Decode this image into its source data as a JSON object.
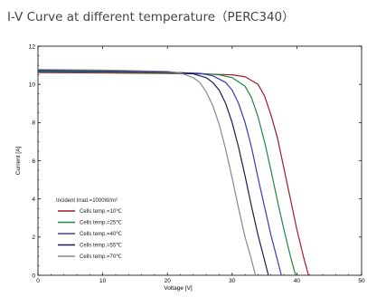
{
  "heading": "I-V Curve at different temperature（PERC340）",
  "colors": {
    "axis": "#000000",
    "grid": "#000000"
  },
  "chart_data": {
    "type": "line",
    "title": "",
    "xlabel": "Voltage [V]",
    "ylabel": "Current [A]",
    "xlim": [
      0,
      50
    ],
    "ylim": [
      0,
      12
    ],
    "x_ticks": [
      "0",
      "10",
      "20",
      "30",
      "40",
      "50"
    ],
    "y_ticks": [
      "0",
      "2",
      "4",
      "6",
      "8",
      "10",
      "12"
    ],
    "grid": false,
    "legend_position": "lower-left",
    "legend_title": "Incident Irrad.=1000W/m²",
    "series": [
      {
        "name": "Cells temp.=10℃",
        "color": "#a01c2a",
        "points": [
          [
            0,
            10.62
          ],
          [
            10,
            10.6
          ],
          [
            20,
            10.57
          ],
          [
            25,
            10.55
          ],
          [
            30,
            10.5
          ],
          [
            32,
            10.4
          ],
          [
            34,
            10.0
          ],
          [
            35,
            9.4
          ],
          [
            36,
            8.4
          ],
          [
            37,
            7.2
          ],
          [
            38,
            5.6
          ],
          [
            39,
            4.0
          ],
          [
            40,
            2.4
          ],
          [
            41,
            1.0
          ],
          [
            41.8,
            0
          ]
        ]
      },
      {
        "name": "Cells temp.=25℃",
        "color": "#1f8a3a",
        "points": [
          [
            0,
            10.66
          ],
          [
            10,
            10.64
          ],
          [
            20,
            10.6
          ],
          [
            25,
            10.57
          ],
          [
            28,
            10.5
          ],
          [
            30,
            10.35
          ],
          [
            32,
            9.9
          ],
          [
            33,
            9.3
          ],
          [
            34,
            8.3
          ],
          [
            35,
            7.0
          ],
          [
            36,
            5.5
          ],
          [
            37,
            3.9
          ],
          [
            38,
            2.4
          ],
          [
            39,
            1.0
          ],
          [
            39.8,
            0
          ]
        ]
      },
      {
        "name": "Cells temp.=40℃",
        "color": "#3a3ab8",
        "points": [
          [
            0,
            10.7
          ],
          [
            10,
            10.68
          ],
          [
            20,
            10.64
          ],
          [
            25,
            10.58
          ],
          [
            27,
            10.45
          ],
          [
            29,
            10.1
          ],
          [
            30,
            9.7
          ],
          [
            31,
            9.0
          ],
          [
            32,
            8.0
          ],
          [
            33,
            6.7
          ],
          [
            34,
            5.1
          ],
          [
            35,
            3.6
          ],
          [
            36,
            2.1
          ],
          [
            37,
            0.8
          ],
          [
            37.6,
            0
          ]
        ]
      },
      {
        "name": "Cells temp.=55℃",
        "color": "#1a1a55",
        "points": [
          [
            0,
            10.74
          ],
          [
            10,
            10.72
          ],
          [
            20,
            10.66
          ],
          [
            24,
            10.55
          ],
          [
            26,
            10.35
          ],
          [
            27,
            10.1
          ],
          [
            28,
            9.7
          ],
          [
            29,
            9.0
          ],
          [
            30,
            8.0
          ],
          [
            31,
            6.7
          ],
          [
            32,
            5.2
          ],
          [
            33,
            3.6
          ],
          [
            34,
            2.1
          ],
          [
            35,
            0.8
          ],
          [
            35.6,
            0
          ]
        ]
      },
      {
        "name": "Cells temp.=70℃",
        "color": "#888888",
        "points": [
          [
            0,
            10.78
          ],
          [
            10,
            10.75
          ],
          [
            20,
            10.68
          ],
          [
            22,
            10.6
          ],
          [
            24,
            10.35
          ],
          [
            25,
            10.1
          ],
          [
            26,
            9.6
          ],
          [
            27,
            8.9
          ],
          [
            28,
            7.9
          ],
          [
            29,
            6.6
          ],
          [
            30,
            5.1
          ],
          [
            31,
            3.5
          ],
          [
            32,
            2.0
          ],
          [
            33,
            0.8
          ],
          [
            33.6,
            0
          ]
        ]
      }
    ]
  }
}
